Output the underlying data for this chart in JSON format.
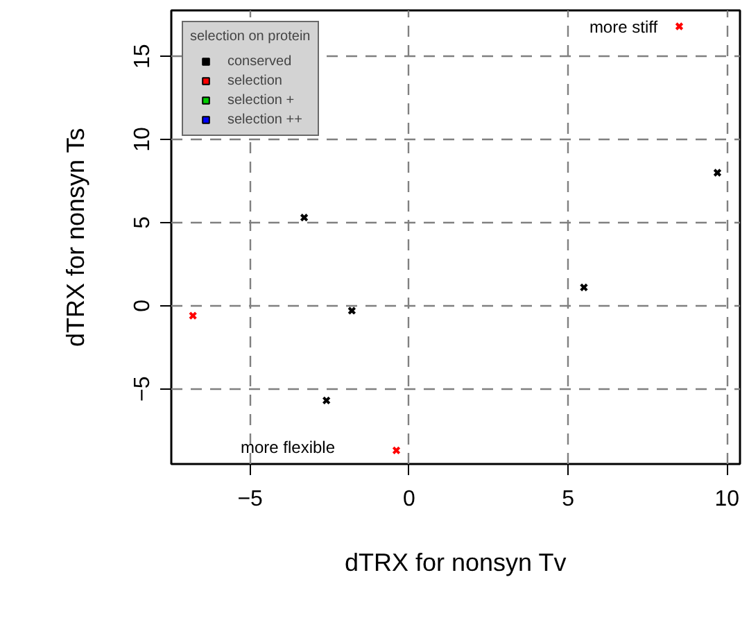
{
  "chart_data": {
    "type": "scatter",
    "xlabel": "dTRX for nonsyn Tv",
    "ylabel": "dTRX for nonsyn Ts",
    "legend_title": "selection on protein",
    "xlim": [
      -7.48,
      10.41
    ],
    "ylim": [
      -9.52,
      17.76
    ],
    "xticks": [
      -5,
      0,
      5,
      10
    ],
    "yticks": [
      -5,
      0,
      5,
      10,
      15
    ],
    "grid": true,
    "legend": "top left",
    "marker": "cross",
    "series": [
      {
        "name": "conserved",
        "color": "#000000",
        "x": [
          -3.3,
          -1.8,
          -2.6,
          5.5,
          9.7
        ],
        "values": [
          5.3,
          -0.3,
          -5.7,
          1.1,
          8.0
        ]
      },
      {
        "name": "selection",
        "color": "#ff0000",
        "x": [
          -6.8,
          -0.4,
          8.5
        ],
        "values": [
          -0.6,
          -8.7,
          16.8
        ]
      },
      {
        "name": "selection +",
        "color": "#00cd00"
      },
      {
        "name": "selection ++",
        "color": "#0000ff"
      }
    ],
    "annotations": [
      "more stiff",
      "more flexible"
    ]
  }
}
